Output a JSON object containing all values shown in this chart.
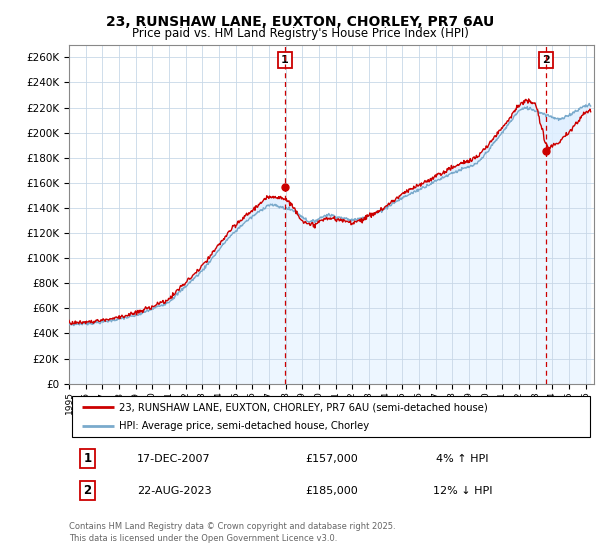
{
  "title": "23, RUNSHAW LANE, EUXTON, CHORLEY, PR7 6AU",
  "subtitle": "Price paid vs. HM Land Registry's House Price Index (HPI)",
  "ylabel_ticks": [
    0,
    20000,
    40000,
    60000,
    80000,
    100000,
    120000,
    140000,
    160000,
    180000,
    200000,
    220000,
    240000,
    260000
  ],
  "ylim": [
    0,
    270000
  ],
  "xlim_start": 1995.0,
  "xlim_end": 2026.5,
  "sale1_year": 2007.96,
  "sale1_price": 157000,
  "sale1_label": "17-DEC-2007",
  "sale1_pct": "4% ↑ HPI",
  "sale2_year": 2023.64,
  "sale2_price": 185000,
  "sale2_label": "22-AUG-2023",
  "sale2_pct": "12% ↓ HPI",
  "line_color_property": "#cc0000",
  "line_color_hpi": "#7aaacc",
  "fill_color": "#ddeeff",
  "legend_label1": "23, RUNSHAW LANE, EUXTON, CHORLEY, PR7 6AU (semi-detached house)",
  "legend_label2": "HPI: Average price, semi-detached house, Chorley",
  "footer": "Contains HM Land Registry data © Crown copyright and database right 2025.\nThis data is licensed under the Open Government Licence v3.0.",
  "grid_color": "#c8d8e8",
  "marker1_num": "1",
  "marker2_num": "2",
  "hpi_anchors_years": [
    1995.0,
    1997.0,
    1999.0,
    2001.0,
    2003.0,
    2004.5,
    2005.5,
    2007.0,
    2008.5,
    2009.5,
    2010.5,
    2012.0,
    2013.5,
    2015.0,
    2016.5,
    2018.0,
    2019.5,
    2021.0,
    2022.0,
    2022.5,
    2023.5,
    2024.5,
    2026.0
  ],
  "hpi_anchors_vals": [
    47000,
    49000,
    54000,
    65000,
    90000,
    115000,
    128000,
    143000,
    138000,
    128000,
    135000,
    130000,
    136000,
    148000,
    158000,
    168000,
    175000,
    200000,
    218000,
    220000,
    215000,
    210000,
    222000
  ]
}
